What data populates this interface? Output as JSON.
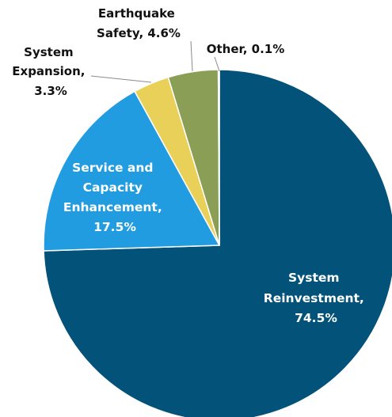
{
  "chart_data": {
    "type": "pie",
    "start_angle_deg": 0,
    "direction": "clockwise",
    "slices": [
      {
        "label_lines": [
          "System",
          "Reinvestment,",
          "74.5%"
        ],
        "category": "System Reinvestment",
        "value": 74.5,
        "color": "#03527a"
      },
      {
        "label_lines": [
          "Service and",
          "Capacity",
          "Enhancement,",
          "17.5%"
        ],
        "category": "Service and Capacity Enhancement",
        "value": 17.5,
        "color": "#229ce0"
      },
      {
        "label_lines": [
          "System",
          "Expansion,",
          "3.3%"
        ],
        "category": "System Expansion",
        "value": 3.3,
        "color": "#e9d159"
      },
      {
        "label_lines": [
          "Earthquake",
          "Safety, 4.6%"
        ],
        "category": "Earthquake Safety",
        "value": 4.6,
        "color": "#8a9f55"
      },
      {
        "label_lines": [
          "Other, 0.1%"
        ],
        "category": "Other",
        "value": 0.1,
        "color": "#b5341c"
      }
    ]
  }
}
